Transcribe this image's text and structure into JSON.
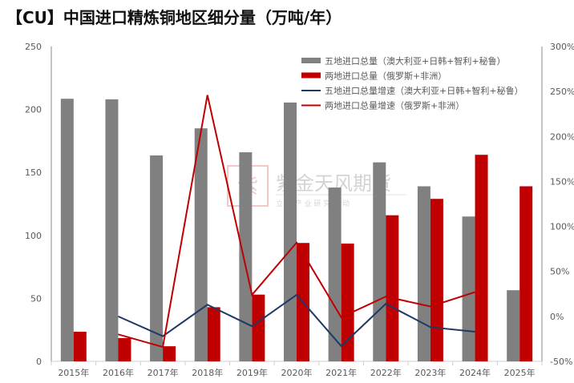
{
  "title": "【CU】中国进口精炼铜地区细分量（万吨/年）",
  "watermark": {
    "name": "紫金天风期货",
    "slogan": "立 足 产 业   研 究 驱 动"
  },
  "chart_data": {
    "type": "bar+line",
    "title": "【CU】中国进口精炼铜地区细分量（万吨/年）",
    "categories": [
      "2015年",
      "2016年",
      "2017年",
      "2018年",
      "2019年",
      "2020年",
      "2021年",
      "2022年",
      "2023年",
      "2024年",
      "2025年"
    ],
    "y_left": {
      "lim": [
        0,
        250
      ],
      "ticks": [
        0,
        50,
        100,
        150,
        200,
        250
      ]
    },
    "y_right": {
      "lim": [
        -50,
        300
      ],
      "ticks": [
        "-50%",
        "0%",
        "50%",
        "100%",
        "150%",
        "200%",
        "250%",
        "300%"
      ],
      "tick_values": [
        -50,
        0,
        50,
        100,
        150,
        200,
        250,
        300
      ]
    },
    "grid": false,
    "legend_position": "top-right",
    "series": [
      {
        "name": "五地进口总量（澳大利亚+日韩+智利+秘鲁）",
        "type": "bar",
        "axis": "left",
        "color": "#808080",
        "values": [
          208.5,
          208,
          163.5,
          185,
          166,
          205.5,
          138,
          158,
          139,
          115,
          56.5
        ]
      },
      {
        "name": "两地进口总量（俄罗斯+非洲）",
        "type": "bar",
        "axis": "left",
        "color": "#C00000",
        "values": [
          23.5,
          18.5,
          12,
          43,
          53,
          94,
          93.5,
          116,
          129,
          164,
          139
        ]
      },
      {
        "name": "五地进口总量增速（澳大利亚+日韩+智利+秘鲁）",
        "type": "line",
        "axis": "right",
        "unit": "%",
        "color": "#1F3864",
        "values": [
          null,
          0,
          -22,
          13,
          -11,
          24,
          -33,
          14,
          -12,
          -17,
          null
        ]
      },
      {
        "name": "两地进口总量增速（俄罗斯+非洲）",
        "type": "line",
        "axis": "right",
        "unit": "%",
        "color": "#C00000",
        "values": [
          null,
          -20,
          -34,
          246,
          24,
          82,
          -1,
          22,
          11,
          27,
          null
        ]
      }
    ]
  }
}
